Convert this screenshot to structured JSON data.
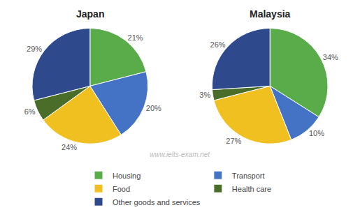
{
  "chart_data": [
    {
      "type": "pie",
      "title": "Japan",
      "categories": [
        "Housing",
        "Transport",
        "Food",
        "Health care",
        "Other goods and services"
      ],
      "values": [
        21,
        20,
        24,
        6,
        29
      ],
      "value_labels": [
        "21%",
        "20%",
        "24%",
        "6%",
        "29%"
      ],
      "colors": [
        "#5aab4a",
        "#4472c4",
        "#f0c020",
        "#4a6e2a",
        "#2e4a8c"
      ],
      "data_labels": true,
      "legend": "bottom",
      "annotations": [
        "www.ielts-exam.net"
      ]
    },
    {
      "type": "pie",
      "title": "Malaysia",
      "categories": [
        "Housing",
        "Transport",
        "Food",
        "Health care",
        "Other goods and services"
      ],
      "values": [
        34,
        10,
        27,
        3,
        26
      ],
      "value_labels": [
        "34%",
        "10%",
        "27%",
        "3%",
        "26%"
      ],
      "colors": [
        "#5aab4a",
        "#4472c4",
        "#f0c020",
        "#4a6e2a",
        "#2e4a8c"
      ],
      "data_labels": true,
      "legend": "bottom"
    }
  ]
}
